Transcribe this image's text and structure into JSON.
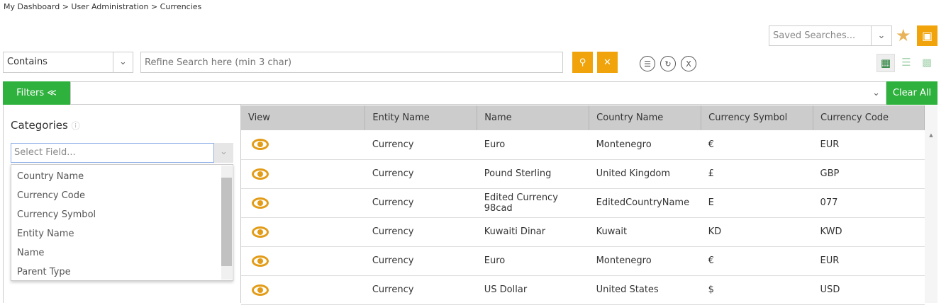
{
  "breadcrumb": [
    "My Dashboard",
    ">  User Administration",
    ">  Currencies"
  ],
  "saved_searches": {
    "placeholder": "Saved Searches..."
  },
  "search": {
    "operator": "Contains",
    "placeholder": "Refine Search here (min 3 char)"
  },
  "filters": {
    "label": "Filters ≪",
    "clear_all": "Clear All"
  },
  "categories": {
    "title": "Categories",
    "select_placeholder": "Select Field...",
    "options": [
      "Country Name",
      "Currency Code",
      "Currency Symbol",
      "Entity Name",
      "Name",
      "Parent Type"
    ]
  },
  "table": {
    "headers": [
      "View",
      "Entity Name",
      "Name",
      "Country Name",
      "Currency Symbol",
      "Currency Code"
    ],
    "rows": [
      [
        "Currency",
        "Euro",
        "Montenegro",
        "€",
        "EUR"
      ],
      [
        "Currency",
        "Pound Sterling",
        "United Kingdom",
        "£",
        "GBP"
      ],
      [
        "Currency",
        "Edited Currency 98cad",
        "EditedCountryName",
        "E",
        "077"
      ],
      [
        "Currency",
        "Kuwaiti Dinar",
        "Kuwait",
        "KD",
        "KWD"
      ],
      [
        "Currency",
        "Euro",
        "Montenegro",
        "€",
        "EUR"
      ],
      [
        "Currency",
        "US Dollar",
        "United States",
        "$",
        "USD"
      ]
    ]
  },
  "colors": {
    "accent": "#f0a30a",
    "green": "#2eb13d",
    "header": "#cccccc"
  }
}
